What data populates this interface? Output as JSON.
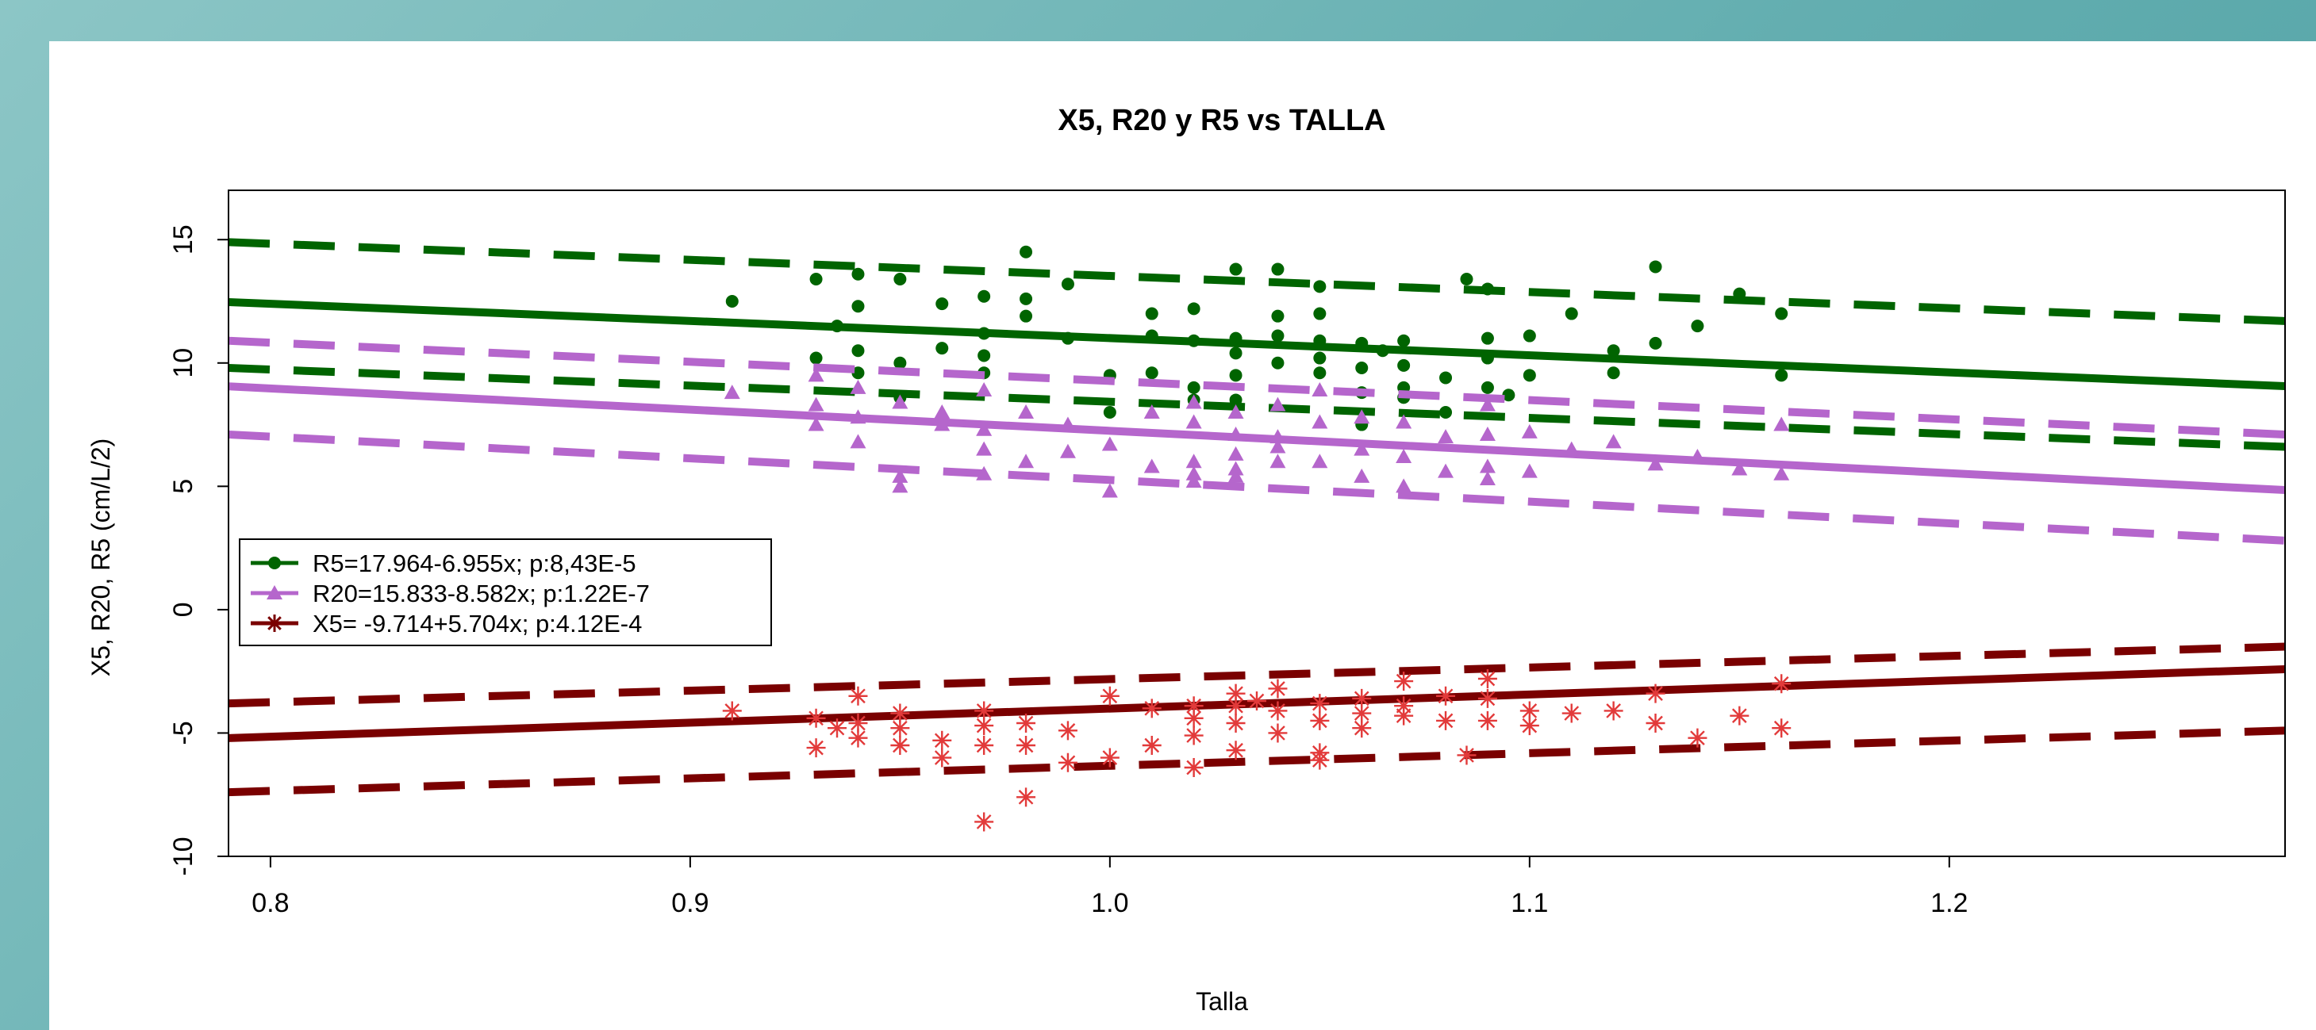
{
  "chart_data": {
    "type": "scatter",
    "title": "X5, R20 y R5 vs TALLA",
    "xlabel": "Talla",
    "ylabel": "X5, R20, R5 (cm/L/2)",
    "xlim": [
      0.79,
      1.28
    ],
    "ylim": [
      -10,
      17
    ],
    "x_ticks": [
      0.8,
      0.9,
      1.0,
      1.1,
      1.2
    ],
    "x_tick_labels": [
      "0.8",
      "0.9",
      "1.0",
      "1.1",
      "1.2"
    ],
    "y_ticks": [
      -10,
      -5,
      0,
      5,
      10,
      15
    ],
    "y_tick_labels": [
      "-10",
      "-5",
      "0",
      "5",
      "10",
      "15"
    ],
    "grid": false,
    "legend_position": "left",
    "series": [
      {
        "name": "R5=17.964-6.955x; p:8,43E-5",
        "color": "#006400",
        "marker": "circle",
        "fit": {
          "intercept": 17.964,
          "slope": -6.955
        },
        "ci_upper": [
          [
            0.79,
            14.9
          ],
          [
            1.28,
            11.7
          ]
        ],
        "ci_lower": [
          [
            0.79,
            9.8
          ],
          [
            1.28,
            6.6
          ]
        ],
        "points": [
          [
            0.91,
            12.5
          ],
          [
            0.93,
            13.4
          ],
          [
            0.93,
            10.2
          ],
          [
            0.935,
            11.5
          ],
          [
            0.94,
            13.6
          ],
          [
            0.94,
            12.3
          ],
          [
            0.94,
            10.5
          ],
          [
            0.94,
            9.6
          ],
          [
            0.95,
            13.4
          ],
          [
            0.95,
            10.0
          ],
          [
            0.95,
            8.6
          ],
          [
            0.96,
            12.4
          ],
          [
            0.96,
            10.6
          ],
          [
            0.97,
            12.7
          ],
          [
            0.97,
            11.2
          ],
          [
            0.97,
            10.3
          ],
          [
            0.97,
            9.6
          ],
          [
            0.98,
            14.5
          ],
          [
            0.98,
            12.6
          ],
          [
            0.98,
            11.9
          ],
          [
            0.99,
            13.2
          ],
          [
            0.99,
            11.0
          ],
          [
            1.0,
            9.5
          ],
          [
            1.0,
            8.0
          ],
          [
            1.01,
            12.0
          ],
          [
            1.01,
            11.1
          ],
          [
            1.01,
            9.6
          ],
          [
            1.02,
            12.2
          ],
          [
            1.02,
            10.9
          ],
          [
            1.02,
            9.0
          ],
          [
            1.02,
            8.5
          ],
          [
            1.03,
            13.8
          ],
          [
            1.03,
            11.0
          ],
          [
            1.03,
            10.4
          ],
          [
            1.03,
            9.5
          ],
          [
            1.03,
            8.5
          ],
          [
            1.04,
            13.8
          ],
          [
            1.04,
            11.9
          ],
          [
            1.04,
            11.1
          ],
          [
            1.04,
            10.0
          ],
          [
            1.05,
            13.1
          ],
          [
            1.05,
            12.0
          ],
          [
            1.05,
            10.9
          ],
          [
            1.05,
            10.2
          ],
          [
            1.05,
            9.6
          ],
          [
            1.06,
            10.8
          ],
          [
            1.06,
            9.8
          ],
          [
            1.06,
            8.8
          ],
          [
            1.06,
            7.5
          ],
          [
            1.065,
            10.5
          ],
          [
            1.07,
            10.9
          ],
          [
            1.07,
            9.9
          ],
          [
            1.07,
            9.0
          ],
          [
            1.07,
            8.6
          ],
          [
            1.08,
            9.4
          ],
          [
            1.08,
            8.0
          ],
          [
            1.085,
            13.4
          ],
          [
            1.09,
            13.0
          ],
          [
            1.09,
            11.0
          ],
          [
            1.09,
            10.2
          ],
          [
            1.09,
            9.0
          ],
          [
            1.095,
            8.7
          ],
          [
            1.1,
            11.1
          ],
          [
            1.1,
            9.5
          ],
          [
            1.11,
            12.0
          ],
          [
            1.12,
            10.5
          ],
          [
            1.12,
            9.6
          ],
          [
            1.13,
            13.9
          ],
          [
            1.13,
            10.8
          ],
          [
            1.14,
            11.5
          ],
          [
            1.15,
            12.8
          ],
          [
            1.16,
            12.0
          ],
          [
            1.16,
            9.5
          ]
        ]
      },
      {
        "name": "R20=15.833-8.582x; p:1.22E-7",
        "color": "#b566cc",
        "marker": "triangle",
        "fit": {
          "intercept": 15.833,
          "slope": -8.582
        },
        "ci_upper": [
          [
            0.79,
            10.9
          ],
          [
            1.28,
            7.1
          ]
        ],
        "ci_lower": [
          [
            0.79,
            7.1
          ],
          [
            1.28,
            2.8
          ]
        ],
        "points": [
          [
            0.91,
            8.8
          ],
          [
            0.93,
            9.5
          ],
          [
            0.93,
            8.3
          ],
          [
            0.93,
            7.5
          ],
          [
            0.94,
            9.0
          ],
          [
            0.94,
            7.8
          ],
          [
            0.94,
            6.8
          ],
          [
            0.95,
            8.4
          ],
          [
            0.95,
            5.4
          ],
          [
            0.95,
            5.0
          ],
          [
            0.96,
            8.0
          ],
          [
            0.96,
            7.5
          ],
          [
            0.97,
            8.9
          ],
          [
            0.97,
            7.3
          ],
          [
            0.97,
            6.5
          ],
          [
            0.97,
            5.5
          ],
          [
            0.98,
            8.0
          ],
          [
            0.98,
            6.0
          ],
          [
            0.99,
            7.5
          ],
          [
            0.99,
            6.4
          ],
          [
            1.0,
            4.8
          ],
          [
            1.0,
            6.7
          ],
          [
            1.01,
            8.0
          ],
          [
            1.01,
            5.8
          ],
          [
            1.02,
            8.4
          ],
          [
            1.02,
            7.6
          ],
          [
            1.02,
            6.0
          ],
          [
            1.02,
            5.5
          ],
          [
            1.02,
            5.2
          ],
          [
            1.03,
            8.0
          ],
          [
            1.03,
            7.1
          ],
          [
            1.03,
            6.3
          ],
          [
            1.03,
            5.7
          ],
          [
            1.03,
            5.4
          ],
          [
            1.04,
            8.3
          ],
          [
            1.04,
            7.0
          ],
          [
            1.04,
            6.6
          ],
          [
            1.04,
            6.0
          ],
          [
            1.05,
            8.9
          ],
          [
            1.05,
            7.6
          ],
          [
            1.05,
            6.0
          ],
          [
            1.06,
            7.8
          ],
          [
            1.06,
            6.5
          ],
          [
            1.06,
            5.4
          ],
          [
            1.07,
            7.6
          ],
          [
            1.07,
            6.2
          ],
          [
            1.07,
            5.0
          ],
          [
            1.08,
            7.0
          ],
          [
            1.08,
            5.6
          ],
          [
            1.09,
            8.3
          ],
          [
            1.09,
            7.1
          ],
          [
            1.09,
            5.8
          ],
          [
            1.09,
            5.3
          ],
          [
            1.1,
            7.2
          ],
          [
            1.1,
            5.6
          ],
          [
            1.11,
            6.5
          ],
          [
            1.12,
            6.8
          ],
          [
            1.13,
            5.9
          ],
          [
            1.14,
            6.2
          ],
          [
            1.15,
            5.7
          ],
          [
            1.16,
            7.5
          ],
          [
            1.16,
            5.5
          ]
        ]
      },
      {
        "name": "X5= -9.714+5.704x; p:4.12E-4",
        "color": "#7a0000",
        "marker": "asterisk",
        "point_color": "#e23a3a",
        "fit": {
          "intercept": -9.714,
          "slope": 5.704
        },
        "ci_upper": [
          [
            0.79,
            -3.8
          ],
          [
            1.28,
            -1.5
          ]
        ],
        "ci_lower": [
          [
            0.79,
            -7.4
          ],
          [
            1.28,
            -4.9
          ]
        ],
        "points": [
          [
            0.91,
            -4.1
          ],
          [
            0.93,
            -4.4
          ],
          [
            0.93,
            -5.6
          ],
          [
            0.935,
            -4.8
          ],
          [
            0.94,
            -3.5
          ],
          [
            0.94,
            -4.6
          ],
          [
            0.94,
            -5.2
          ],
          [
            0.95,
            -4.2
          ],
          [
            0.95,
            -4.8
          ],
          [
            0.95,
            -5.5
          ],
          [
            0.96,
            -5.3
          ],
          [
            0.96,
            -6.0
          ],
          [
            0.97,
            -4.1
          ],
          [
            0.97,
            -4.7
          ],
          [
            0.97,
            -5.5
          ],
          [
            0.97,
            -8.6
          ],
          [
            0.98,
            -4.6
          ],
          [
            0.98,
            -5.5
          ],
          [
            0.98,
            -7.6
          ],
          [
            0.99,
            -4.9
          ],
          [
            0.99,
            -6.2
          ],
          [
            1.0,
            -3.5
          ],
          [
            1.0,
            -6.0
          ],
          [
            1.01,
            -4.0
          ],
          [
            1.01,
            -5.5
          ],
          [
            1.02,
            -3.9
          ],
          [
            1.02,
            -4.4
          ],
          [
            1.02,
            -5.1
          ],
          [
            1.02,
            -6.4
          ],
          [
            1.03,
            -3.4
          ],
          [
            1.03,
            -3.9
          ],
          [
            1.03,
            -4.6
          ],
          [
            1.03,
            -5.7
          ],
          [
            1.035,
            -3.7
          ],
          [
            1.04,
            -3.2
          ],
          [
            1.04,
            -4.1
          ],
          [
            1.04,
            -5.0
          ],
          [
            1.05,
            -3.8
          ],
          [
            1.05,
            -4.5
          ],
          [
            1.05,
            -5.8
          ],
          [
            1.05,
            -6.1
          ],
          [
            1.06,
            -3.6
          ],
          [
            1.06,
            -4.2
          ],
          [
            1.06,
            -4.8
          ],
          [
            1.07,
            -2.9
          ],
          [
            1.07,
            -3.9
          ],
          [
            1.07,
            -4.3
          ],
          [
            1.08,
            -3.5
          ],
          [
            1.08,
            -4.5
          ],
          [
            1.085,
            -5.9
          ],
          [
            1.09,
            -2.8
          ],
          [
            1.09,
            -3.6
          ],
          [
            1.09,
            -4.5
          ],
          [
            1.1,
            -4.1
          ],
          [
            1.1,
            -4.7
          ],
          [
            1.11,
            -4.2
          ],
          [
            1.12,
            -4.1
          ],
          [
            1.13,
            -3.4
          ],
          [
            1.13,
            -4.6
          ],
          [
            1.14,
            -5.2
          ],
          [
            1.15,
            -4.3
          ],
          [
            1.16,
            -3.0
          ],
          [
            1.16,
            -4.8
          ]
        ]
      }
    ]
  }
}
